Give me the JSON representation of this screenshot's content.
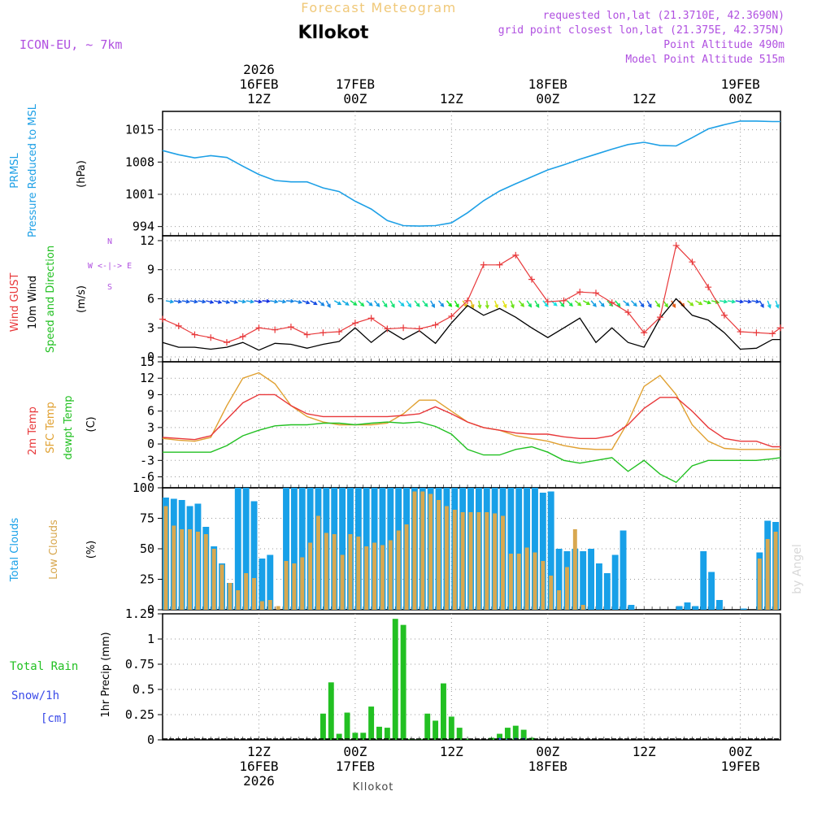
{
  "header": {
    "title": "Forecast Meteogram",
    "location": "Kllokot",
    "model": "ICON-EU, ~ 7km",
    "requested": "requested lon,lat (21.3710E, 42.3690N)",
    "grid": "grid point closest lon,lat (21.375E, 42.375N)",
    "point_alt": "Point Altitude 490m",
    "model_alt": "Model Point Altitude 515m",
    "watermark": "by Angel",
    "footer": "Kllokot"
  },
  "colors": {
    "pressure": "#1ea0e6",
    "gust": "#e8383a",
    "wind": "#000000",
    "t2m": "#e8383a",
    "sfc": "#e0a030",
    "dewpt": "#22c022",
    "total_cloud": "#18a0e8",
    "low_cloud": "#d8a850",
    "rain": "#22c022",
    "snow": "#3a4ae8",
    "label_violet": "#b050e0",
    "title_gold": "#f0c878"
  },
  "time_axis": {
    "top_ticks": [
      {
        "h": 12,
        "lines": [
          "2026",
          "16FEB",
          "12Z"
        ]
      },
      {
        "h": 24,
        "lines": [
          "17FEB",
          "00Z"
        ]
      },
      {
        "h": 36,
        "lines": [
          "12Z"
        ]
      },
      {
        "h": 48,
        "lines": [
          "18FEB",
          "00Z"
        ]
      },
      {
        "h": 60,
        "lines": [
          "12Z"
        ]
      },
      {
        "h": 72,
        "lines": [
          "19FEB",
          "00Z"
        ]
      }
    ],
    "bottom_ticks": [
      {
        "h": 12,
        "lines": [
          "12Z",
          "16FEB",
          "2026"
        ]
      },
      {
        "h": 24,
        "lines": [
          "00Z",
          "17FEB"
        ]
      },
      {
        "h": 36,
        "lines": [
          "12Z"
        ]
      },
      {
        "h": 48,
        "lines": [
          "00Z",
          "18FEB"
        ]
      },
      {
        "h": 60,
        "lines": [
          "12Z"
        ]
      },
      {
        "h": 72,
        "lines": [
          "00Z",
          "19FEB"
        ]
      }
    ],
    "start_hour": 0,
    "end_hour": 77
  },
  "chart_data": [
    {
      "type": "line",
      "id": "pressure",
      "labels": [
        "PRMSL",
        "Pressure Reduced to MSL"
      ],
      "unit": "(hPa)",
      "ylim": [
        992,
        1019
      ],
      "yticks": [
        994,
        1001,
        1008,
        1015
      ],
      "x": [
        0,
        2,
        4,
        6,
        8,
        10,
        12,
        14,
        16,
        18,
        20,
        22,
        24,
        26,
        28,
        30,
        32,
        34,
        36,
        38,
        40,
        42,
        44,
        46,
        48,
        50,
        52,
        54,
        56,
        58,
        60,
        62,
        64,
        66,
        68,
        70,
        72,
        74,
        76,
        77
      ],
      "values": [
        1010.5,
        1009.6,
        1008.9,
        1009.4,
        1009.0,
        1007.1,
        1005.3,
        1004.0,
        1003.7,
        1003.7,
        1002.4,
        1001.6,
        999.5,
        997.8,
        995.3,
        994.2,
        994.1,
        994.2,
        994.8,
        997.0,
        999.6,
        1001.7,
        1003.3,
        1004.8,
        1006.3,
        1007.4,
        1008.6,
        1009.7,
        1010.8,
        1011.8,
        1012.3,
        1011.6,
        1011.5,
        1013.3,
        1015.2,
        1016.1,
        1016.9,
        1016.9,
        1016.8,
        1016.8
      ]
    },
    {
      "type": "line",
      "id": "wind",
      "labels": [
        "Wind GUST",
        "10m Wind",
        "Speed and Direction"
      ],
      "unit": "(m/s)",
      "compass": [
        "N",
        "W <-|-> E",
        "S"
      ],
      "ylim": [
        -0.5,
        12.5
      ],
      "yticks": [
        0,
        3,
        6,
        9,
        12
      ],
      "x": [
        0,
        2,
        4,
        6,
        8,
        10,
        12,
        14,
        16,
        18,
        20,
        22,
        24,
        26,
        28,
        30,
        32,
        34,
        36,
        38,
        40,
        42,
        44,
        46,
        48,
        50,
        52,
        54,
        56,
        58,
        60,
        62,
        64,
        66,
        68,
        70,
        72,
        74,
        76,
        77
      ],
      "gust": [
        3.9,
        3.2,
        2.3,
        2.0,
        1.5,
        2.1,
        3.0,
        2.8,
        3.1,
        2.3,
        2.5,
        2.6,
        3.5,
        4.0,
        2.9,
        3.0,
        2.9,
        3.3,
        4.2,
        5.8,
        9.5,
        9.5,
        10.5,
        8.0,
        5.7,
        5.8,
        6.7,
        6.6,
        5.6,
        4.6,
        2.5,
        4.1,
        11.5,
        9.8,
        7.2,
        4.3,
        2.6,
        2.5,
        2.4,
        3.0
      ],
      "wind": [
        1.5,
        1.0,
        1.0,
        0.8,
        1.0,
        1.5,
        0.7,
        1.4,
        1.3,
        0.9,
        1.3,
        1.6,
        3.0,
        1.5,
        2.8,
        1.8,
        2.7,
        1.4,
        3.5,
        5.3,
        4.3,
        5.0,
        4.1,
        3.0,
        2.0,
        3.0,
        4.0,
        1.5,
        3.0,
        1.5,
        1.0,
        4.0,
        6.0,
        4.3,
        3.8,
        2.5,
        0.8,
        0.9,
        1.8,
        1.8
      ],
      "arrow_x": [
        0,
        1,
        2,
        3,
        4,
        5,
        6,
        7,
        8,
        9,
        10,
        11,
        12,
        13,
        14,
        15,
        16,
        17,
        18,
        19,
        20,
        21,
        22,
        23,
        24,
        25,
        26,
        27,
        28,
        29,
        30,
        31,
        32,
        33,
        34,
        35,
        36,
        37,
        38,
        39,
        40,
        41,
        42,
        43,
        44,
        45,
        46,
        47,
        48,
        49,
        50,
        51,
        52,
        53,
        54,
        55,
        56,
        57,
        58,
        59,
        60,
        61,
        62,
        63,
        64,
        65,
        66,
        67,
        68,
        69,
        70,
        71,
        72,
        73,
        74,
        75,
        76
      ],
      "arrow_dir_deg": [
        100,
        100,
        100,
        100,
        100,
        105,
        105,
        105,
        105,
        100,
        100,
        100,
        95,
        100,
        100,
        95,
        105,
        110,
        120,
        130,
        150,
        120,
        125,
        125,
        135,
        130,
        140,
        145,
        150,
        135,
        145,
        140,
        140,
        150,
        140,
        140,
        150,
        145,
        160,
        170,
        175,
        160,
        155,
        160,
        140,
        145,
        150,
        140,
        130,
        140,
        135,
        130,
        120,
        140,
        140,
        135,
        140,
        130,
        135,
        145,
        150,
        145,
        145,
        150,
        140,
        130,
        120,
        110,
        105,
        100,
        100,
        100,
        100,
        100,
        150,
        160,
        160
      ]
    },
    {
      "type": "line",
      "id": "temperature",
      "labels": [
        "2m Temp",
        "SFC Temp",
        "dewpt Temp"
      ],
      "unit": "(C)",
      "ylim": [
        -8,
        15
      ],
      "yticks": [
        -6,
        -3,
        0,
        3,
        6,
        9,
        12,
        15
      ],
      "x": [
        0,
        2,
        4,
        6,
        8,
        10,
        12,
        14,
        16,
        18,
        20,
        22,
        24,
        26,
        28,
        30,
        32,
        34,
        36,
        38,
        40,
        42,
        44,
        46,
        48,
        50,
        52,
        54,
        56,
        58,
        60,
        62,
        64,
        66,
        68,
        70,
        72,
        74,
        76,
        77
      ],
      "t2m": [
        1.2,
        1.0,
        0.8,
        1.5,
        4.5,
        7.5,
        9.0,
        9.0,
        7.0,
        5.5,
        5.0,
        5.0,
        5.0,
        5.0,
        5.0,
        5.2,
        5.5,
        6.8,
        5.5,
        4.0,
        3.0,
        2.5,
        2.0,
        1.8,
        1.8,
        1.3,
        1.0,
        1.0,
        1.5,
        3.5,
        6.5,
        8.5,
        8.5,
        6.0,
        3.0,
        1.0,
        0.5,
        0.5,
        -0.5,
        -0.5
      ],
      "sfc": [
        1.0,
        0.7,
        0.5,
        1.2,
        7.0,
        12.0,
        13.0,
        11.0,
        7.0,
        5.0,
        4.0,
        3.5,
        3.5,
        3.5,
        3.8,
        5.5,
        8.0,
        8.0,
        6.0,
        4.0,
        3.0,
        2.5,
        1.5,
        1.0,
        0.5,
        -0.3,
        -0.8,
        -1.0,
        -1.0,
        4.0,
        10.5,
        12.5,
        9.0,
        3.5,
        0.5,
        -0.8,
        -1.0,
        -1.0,
        -1.0,
        -1.0
      ],
      "dewpt": [
        -1.5,
        -1.5,
        -1.5,
        -1.5,
        -0.3,
        1.5,
        2.5,
        3.3,
        3.5,
        3.5,
        3.8,
        3.8,
        3.5,
        3.8,
        4.0,
        3.8,
        4.0,
        3.2,
        1.8,
        -1.0,
        -2.0,
        -2.0,
        -1.0,
        -0.5,
        -1.5,
        -3.0,
        -3.5,
        -3.0,
        -2.5,
        -5.0,
        -3.0,
        -5.5,
        -7.0,
        -4.0,
        -3.0,
        -3.0,
        -3.0,
        -3.0,
        -2.7,
        -2.5
      ]
    },
    {
      "type": "bar",
      "id": "clouds",
      "labels": [
        "Total Clouds",
        "Low Clouds"
      ],
      "unit": "(%)",
      "ylim": [
        0,
        100
      ],
      "yticks": [
        0,
        25,
        50,
        75,
        100
      ],
      "hours": [
        0,
        1,
        2,
        3,
        4,
        5,
        6,
        7,
        8,
        9,
        10,
        11,
        12,
        13,
        14,
        15,
        16,
        17,
        18,
        19,
        20,
        21,
        22,
        23,
        24,
        25,
        26,
        27,
        28,
        29,
        30,
        31,
        32,
        33,
        34,
        35,
        36,
        37,
        38,
        39,
        40,
        41,
        42,
        43,
        44,
        45,
        46,
        47,
        48,
        49,
        50,
        51,
        52,
        53,
        54,
        55,
        56,
        57,
        58,
        59,
        60,
        61,
        62,
        63,
        64,
        65,
        66,
        67,
        68,
        69,
        70,
        71,
        72,
        73,
        74,
        75,
        76
      ],
      "total": [
        92,
        91,
        90,
        85,
        87,
        68,
        52,
        38,
        22,
        100,
        100,
        89,
        42,
        45,
        0,
        100,
        100,
        100,
        100,
        100,
        100,
        100,
        100,
        100,
        100,
        100,
        100,
        100,
        100,
        100,
        100,
        100,
        100,
        100,
        100,
        100,
        100,
        100,
        100,
        100,
        100,
        100,
        100,
        100,
        100,
        100,
        100,
        96,
        97,
        50,
        48,
        50,
        48,
        50,
        38,
        30,
        45,
        65,
        4,
        0,
        0,
        0,
        0,
        0,
        3,
        6,
        3,
        48,
        31,
        8,
        0,
        0,
        1,
        0,
        47,
        73,
        72
      ],
      "low": [
        85,
        69,
        66,
        66,
        64,
        62,
        50,
        37,
        22,
        16,
        30,
        26,
        7,
        8,
        3,
        40,
        38,
        43,
        55,
        77,
        63,
        62,
        45,
        62,
        60,
        52,
        55,
        53,
        57,
        65,
        70,
        97,
        97,
        95,
        90,
        85,
        82,
        80,
        80,
        80,
        80,
        79,
        77,
        46,
        46,
        51,
        47,
        40,
        28,
        16,
        35,
        66,
        4,
        0,
        0,
        0,
        0,
        0,
        0,
        0,
        0,
        0,
        0,
        0,
        0,
        0,
        0,
        0,
        0,
        0,
        0,
        0,
        0,
        0,
        42,
        58,
        64
      ]
    },
    {
      "type": "bar",
      "id": "precip",
      "labels": [
        "Total  Rain",
        "Snow/1h",
        "[cm]"
      ],
      "unit": "1hr Precip (mm)",
      "ylim": [
        0,
        1.25
      ],
      "yticks": [
        0,
        0.25,
        0.5,
        0.75,
        1,
        1.25
      ],
      "ytick_labels": [
        "0",
        "0.25",
        "0.5",
        "0.75",
        "1",
        "1.25"
      ],
      "hours": [
        20,
        21,
        22,
        23,
        24,
        25,
        26,
        27,
        28,
        29,
        30,
        31,
        32,
        33,
        34,
        35,
        36,
        37,
        38,
        41,
        42,
        43,
        44,
        45,
        46
      ],
      "rain": [
        0.26,
        0.57,
        0.06,
        0.27,
        0.07,
        0.07,
        0.33,
        0.13,
        0.12,
        1.2,
        1.14,
        0.01,
        0.01,
        0.26,
        0.19,
        0.56,
        0.23,
        0.12,
        0.01,
        0.02,
        0.06,
        0.12,
        0.14,
        0.1,
        0.02
      ],
      "snow": [
        0,
        0,
        0,
        0,
        0,
        0,
        0,
        0,
        0,
        0,
        0,
        0,
        0,
        0,
        0,
        0,
        0,
        0,
        0,
        0,
        0.02,
        0.01,
        0.02,
        0.02,
        0
      ]
    }
  ]
}
